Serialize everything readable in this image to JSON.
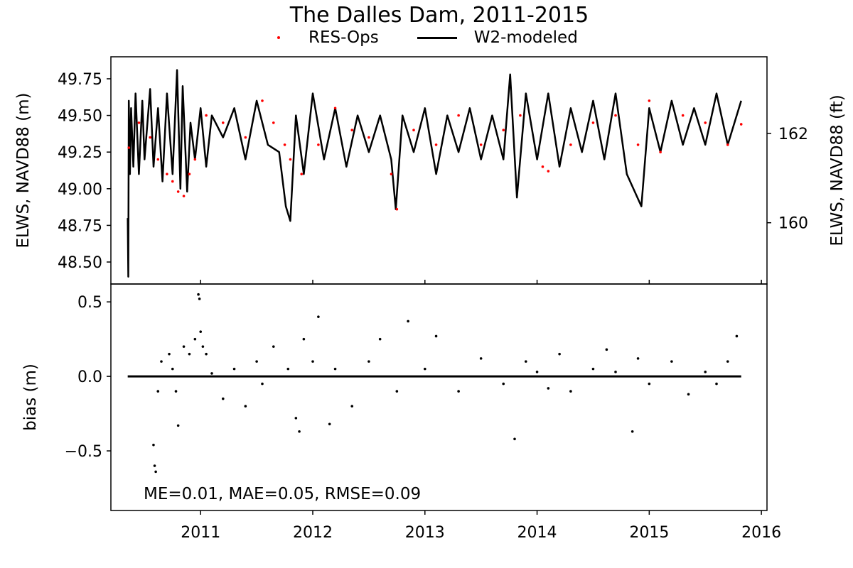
{
  "chart_data": [
    {
      "type": "line",
      "title": "The Dalles Dam, 2011-2015",
      "ylabel": "ELWS, NAVD88 (m)",
      "y2label": "ELWS, NAVD88 (ft)",
      "ylim": [
        48.35,
        49.9
      ],
      "y_ticks": [
        "48.50",
        "48.75",
        "49.00",
        "49.25",
        "49.50",
        "49.75"
      ],
      "y2_ticks": [
        "160",
        "162"
      ],
      "xlim": [
        2010.2,
        2016.05
      ],
      "x_ticks": [
        "2011",
        "2012",
        "2013",
        "2014",
        "2015",
        "2016"
      ],
      "legend": "top-center, above plot",
      "series": [
        {
          "name": "RES-Ops",
          "style": "dots",
          "color": "#ff0000",
          "x": [
            2010.36,
            2010.45,
            2010.55,
            2010.62,
            2010.7,
            2010.75,
            2010.8,
            2010.85,
            2010.9,
            2010.95,
            2011.05,
            2011.2,
            2011.4,
            2011.55,
            2011.65,
            2011.75,
            2011.8,
            2011.9,
            2012.05,
            2012.2,
            2012.35,
            2012.5,
            2012.7,
            2012.75,
            2012.9,
            2013.1,
            2013.3,
            2013.5,
            2013.7,
            2013.85,
            2014.05,
            2014.1,
            2014.3,
            2014.5,
            2014.7,
            2014.9,
            2015.0,
            2015.1,
            2015.3,
            2015.5,
            2015.7,
            2015.82
          ],
          "y": [
            49.28,
            49.45,
            49.35,
            49.2,
            49.1,
            49.05,
            48.98,
            48.95,
            49.1,
            49.2,
            49.5,
            49.45,
            49.35,
            49.6,
            49.45,
            49.3,
            49.2,
            49.1,
            49.3,
            49.55,
            49.4,
            49.35,
            49.1,
            48.86,
            49.4,
            49.3,
            49.5,
            49.3,
            49.4,
            49.5,
            49.15,
            49.12,
            49.3,
            49.45,
            49.5,
            49.3,
            49.6,
            49.25,
            49.5,
            49.45,
            49.3,
            49.44
          ]
        },
        {
          "name": "W2-modeled",
          "style": "line",
          "color": "#000000",
          "x": [
            2010.35,
            2010.355,
            2010.36,
            2010.37,
            2010.38,
            2010.4,
            2010.42,
            2010.45,
            2010.48,
            2010.5,
            2010.55,
            2010.58,
            2010.62,
            2010.66,
            2010.7,
            2010.75,
            2010.79,
            2010.82,
            2010.84,
            2010.88,
            2010.91,
            2010.95,
            2011.0,
            2011.05,
            2011.1,
            2011.2,
            2011.3,
            2011.4,
            2011.5,
            2011.6,
            2011.7,
            2011.76,
            2011.8,
            2011.85,
            2011.92,
            2012.0,
            2012.1,
            2012.2,
            2012.3,
            2012.4,
            2012.5,
            2012.6,
            2012.7,
            2012.74,
            2012.8,
            2012.9,
            2013.0,
            2013.1,
            2013.2,
            2013.3,
            2013.4,
            2013.5,
            2013.6,
            2013.7,
            2013.76,
            2013.82,
            2013.9,
            2014.0,
            2014.1,
            2014.2,
            2014.3,
            2014.4,
            2014.5,
            2014.6,
            2014.7,
            2014.8,
            2014.93,
            2015.0,
            2015.1,
            2015.2,
            2015.3,
            2015.4,
            2015.5,
            2015.6,
            2015.7,
            2015.82
          ],
          "y": [
            48.8,
            48.4,
            49.6,
            49.1,
            49.55,
            49.15,
            49.65,
            49.1,
            49.6,
            49.2,
            49.68,
            49.15,
            49.55,
            49.05,
            49.65,
            49.1,
            49.81,
            49.0,
            49.7,
            48.98,
            49.45,
            49.2,
            49.55,
            49.15,
            49.5,
            49.35,
            49.55,
            49.2,
            49.6,
            49.3,
            49.25,
            48.88,
            48.78,
            49.5,
            49.1,
            49.65,
            49.2,
            49.55,
            49.15,
            49.5,
            49.25,
            49.5,
            49.2,
            48.86,
            49.5,
            49.25,
            49.55,
            49.1,
            49.5,
            49.25,
            49.55,
            49.2,
            49.5,
            49.2,
            49.78,
            48.94,
            49.65,
            49.2,
            49.65,
            49.15,
            49.55,
            49.25,
            49.6,
            49.2,
            49.65,
            49.1,
            48.88,
            49.55,
            49.25,
            49.6,
            49.3,
            49.55,
            49.3,
            49.65,
            49.3,
            49.6
          ]
        }
      ]
    },
    {
      "type": "scatter",
      "ylabel": "bias (m)",
      "ylim": [
        -0.9,
        0.62
      ],
      "y_ticks": [
        "−0.5",
        "0.0",
        "0.5"
      ],
      "xlim": [
        2010.2,
        2016.05
      ],
      "x_ticks": [
        "2011",
        "2012",
        "2013",
        "2014",
        "2015",
        "2016"
      ],
      "annotation": "ME=0.01, MAE=0.05, RMSE=0.09",
      "zero_line": {
        "x": [
          2010.35,
          2015.82
        ],
        "y": [
          0.0,
          0.0
        ]
      },
      "series": [
        {
          "color": "#000000",
          "x": [
            2010.58,
            2010.59,
            2010.6,
            2010.62,
            2010.65,
            2010.72,
            2010.75,
            2010.78,
            2010.8,
            2010.85,
            2010.9,
            2010.95,
            2010.98,
            2010.99,
            2011.0,
            2011.02,
            2011.05,
            2011.1,
            2011.2,
            2011.3,
            2011.4,
            2011.5,
            2011.55,
            2011.65,
            2011.78,
            2011.85,
            2011.88,
            2011.92,
            2012.0,
            2012.05,
            2012.15,
            2012.2,
            2012.35,
            2012.5,
            2012.6,
            2012.75,
            2012.85,
            2013.0,
            2013.1,
            2013.3,
            2013.5,
            2013.7,
            2013.8,
            2013.9,
            2014.0,
            2014.1,
            2014.2,
            2014.3,
            2014.5,
            2014.62,
            2014.7,
            2014.85,
            2014.9,
            2015.0,
            2015.2,
            2015.35,
            2015.5,
            2015.6,
            2015.7,
            2015.78
          ],
          "y": [
            -0.46,
            -0.6,
            -0.64,
            -0.1,
            0.1,
            0.15,
            0.05,
            -0.1,
            -0.33,
            0.2,
            0.15,
            0.25,
            0.55,
            0.52,
            0.3,
            0.2,
            0.15,
            0.02,
            -0.15,
            0.05,
            -0.2,
            0.1,
            -0.05,
            0.2,
            0.05,
            -0.28,
            -0.37,
            0.25,
            0.1,
            0.4,
            -0.32,
            0.05,
            -0.2,
            0.1,
            0.25,
            -0.1,
            0.37,
            0.05,
            0.27,
            -0.1,
            0.12,
            -0.05,
            -0.42,
            0.1,
            0.03,
            -0.08,
            0.15,
            -0.1,
            0.05,
            0.18,
            0.03,
            -0.37,
            0.12,
            -0.05,
            0.1,
            -0.12,
            0.03,
            -0.05,
            0.1,
            0.27
          ]
        }
      ]
    }
  ]
}
